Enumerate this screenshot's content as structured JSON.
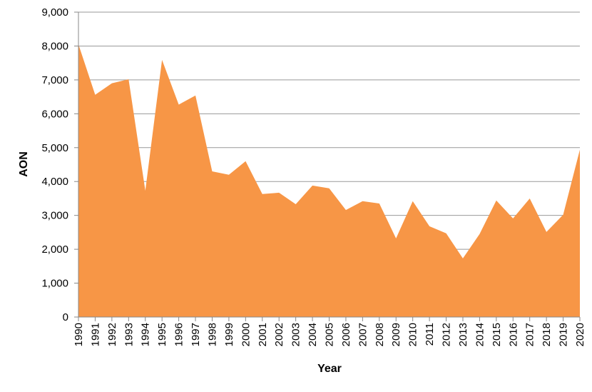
{
  "chart_data": {
    "type": "area",
    "xlabel": "Year",
    "ylabel": "AON",
    "categories": [
      "1990",
      "1991",
      "1992",
      "1993",
      "1994",
      "1995",
      "1996",
      "1997",
      "1998",
      "1999",
      "2000",
      "2001",
      "2002",
      "2003",
      "2004",
      "2005",
      "2006",
      "2007",
      "2008",
      "2009",
      "2010",
      "2011",
      "2012",
      "2013",
      "2014",
      "2015",
      "2016",
      "2017",
      "2018",
      "2019",
      "2020"
    ],
    "values": [
      8050,
      6560,
      6900,
      7020,
      3730,
      7590,
      6270,
      6540,
      4300,
      4200,
      4600,
      3630,
      3670,
      3330,
      3880,
      3800,
      3160,
      3420,
      3350,
      2320,
      3420,
      2680,
      2470,
      1730,
      2450,
      3440,
      2910,
      3500,
      2510,
      3020,
      4940
    ],
    "color": "#f79646",
    "ylim": [
      0,
      9000
    ],
    "yticks": [
      0,
      {
        "value": 1000,
        "label": "1,000"
      },
      {
        "value": 2000,
        "label": "2,000"
      },
      {
        "value": 3000,
        "label": "3,000"
      },
      {
        "value": 4000,
        "label": "4,000"
      },
      {
        "value": 5000,
        "label": "5,000"
      },
      {
        "value": 6000,
        "label": "6,000"
      },
      {
        "value": 7000,
        "label": "7,000"
      },
      {
        "value": 8000,
        "label": "8,000"
      },
      {
        "value": 9000,
        "label": "9,000"
      }
    ],
    "grid": true
  }
}
